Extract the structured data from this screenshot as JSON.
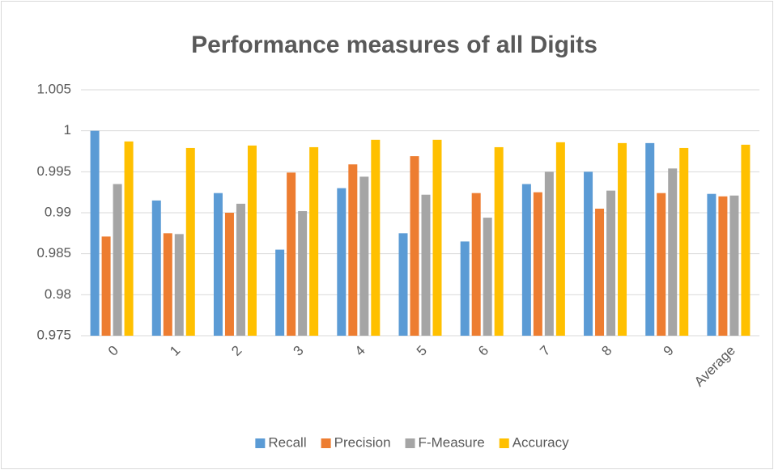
{
  "chart_data": {
    "type": "bar",
    "title": "Performance measures of all Digits",
    "categories": [
      "0",
      "1",
      "2",
      "3",
      "4",
      "5",
      "6",
      "7",
      "8",
      "9",
      "Average"
    ],
    "series": [
      {
        "name": "Recall",
        "color": "#5b9bd5",
        "values": [
          1.0,
          0.9915,
          0.9924,
          0.9855,
          0.993,
          0.9875,
          0.9865,
          0.9935,
          0.995,
          0.9985,
          0.9923
        ]
      },
      {
        "name": "Precision",
        "color": "#ed7d31",
        "values": [
          0.9871,
          0.9875,
          0.99,
          0.9949,
          0.9959,
          0.9969,
          0.9924,
          0.9925,
          0.9905,
          0.9924,
          0.992
        ]
      },
      {
        "name": "F-Measure",
        "color": "#a5a5a5",
        "values": [
          0.9935,
          0.9874,
          0.9911,
          0.9902,
          0.9944,
          0.9922,
          0.9894,
          0.995,
          0.9927,
          0.9954,
          0.9921
        ]
      },
      {
        "name": "Accuracy",
        "color": "#ffc000",
        "values": [
          0.9987,
          0.9979,
          0.9982,
          0.998,
          0.9989,
          0.9989,
          0.998,
          0.9986,
          0.9985,
          0.9979,
          0.9983
        ]
      }
    ],
    "ylim": [
      0.975,
      1.005
    ],
    "yticks": [
      0.975,
      0.98,
      0.985,
      0.99,
      0.995,
      1,
      1.005
    ],
    "grid": true,
    "legend": "bottom"
  }
}
